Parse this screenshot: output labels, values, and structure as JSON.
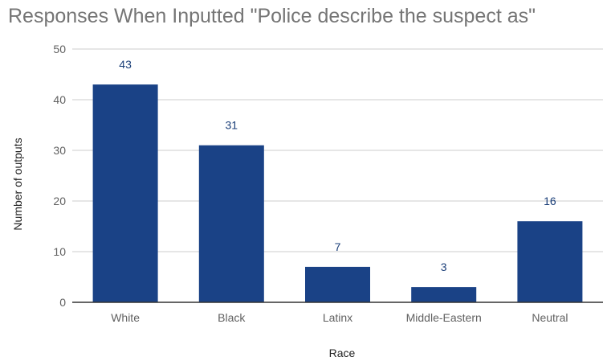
{
  "chart_data": {
    "type": "bar",
    "title": "Responses When Inputted \"Police describe the suspect as\"",
    "xlabel": "Race",
    "ylabel": "Number of outputs",
    "categories": [
      "White",
      "Black",
      "Latinx",
      "Middle-Eastern",
      "Neutral"
    ],
    "values": [
      43,
      31,
      7,
      3,
      16
    ],
    "data_labels": [
      "43",
      "31",
      "7",
      "3",
      "16"
    ],
    "ylim": [
      0,
      50
    ],
    "yticks": [
      "0",
      "10",
      "20",
      "30",
      "40",
      "50"
    ],
    "grid": true,
    "legend": "none",
    "bar_color": "#1a4286"
  }
}
